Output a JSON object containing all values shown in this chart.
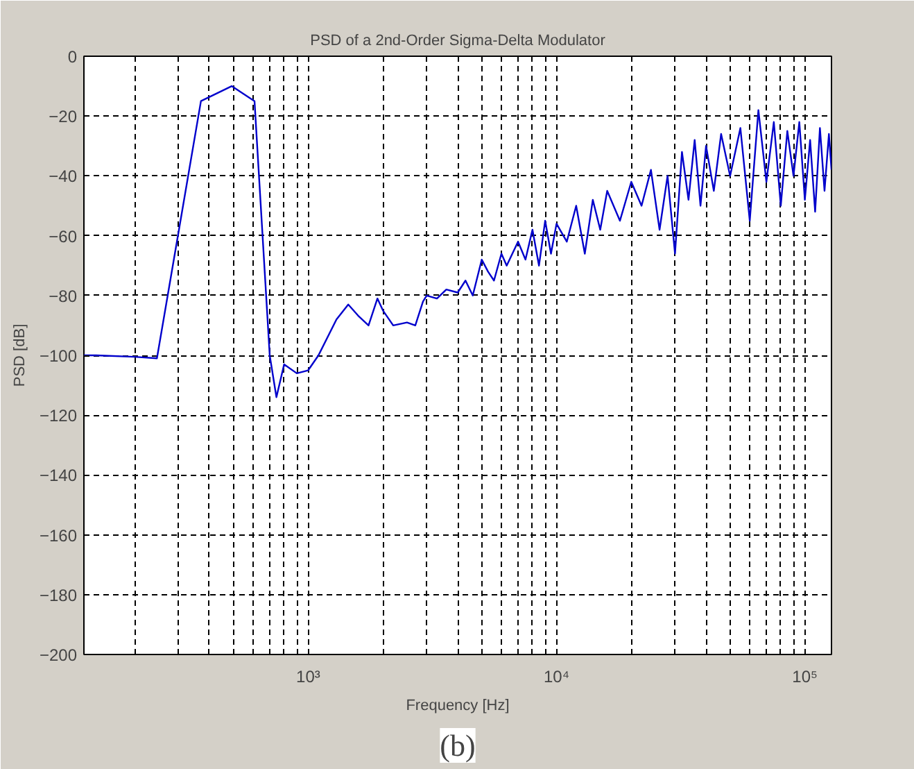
{
  "chart_data": {
    "type": "line",
    "title": "PSD of a 2nd-Order Sigma-Delta Modulator",
    "xlabel": "Frequency [Hz]",
    "ylabel": "PSD [dB]",
    "annotations": [
      "(b)"
    ],
    "log": "x",
    "grid": true,
    "line_style": "solid",
    "marker": "none",
    "xlim": [
      125,
      128000
    ],
    "ylim": [
      -200,
      0
    ],
    "xticks": [
      {
        "value": 1000,
        "label": "10³"
      },
      {
        "value": 10000,
        "label": "10⁴"
      },
      {
        "value": 100000,
        "label": "10⁵"
      }
    ],
    "yticks": [
      -200,
      -180,
      -160,
      -140,
      -120,
      -100,
      -80,
      -60,
      -40,
      -20,
      0
    ],
    "x": [
      125,
      140,
      200,
      246,
      370,
      492,
      608,
      700,
      745,
      800,
      900,
      1000,
      1100,
      1300,
      1450,
      1600,
      1750,
      1900,
      2000,
      2200,
      2500,
      2700,
      2900,
      3000,
      3300,
      3600,
      4000,
      4300,
      4600,
      5000,
      5300,
      5600,
      6000,
      6300,
      7000,
      7500,
      8000,
      8500,
      9000,
      9500,
      10000,
      11000,
      12000,
      13000,
      14000,
      15000,
      16000,
      18000,
      20000,
      22000,
      24000,
      26000,
      28000,
      30000,
      32000,
      34000,
      36000,
      38000,
      40000,
      43000,
      46000,
      50000,
      55000,
      60000,
      65000,
      70000,
      75000,
      80000,
      85000,
      90000,
      95000,
      100000,
      105000,
      110000,
      115000,
      120000,
      125000,
      128000
    ],
    "series": [
      {
        "color": "#0000cc",
        "values": [
          -100,
          -100,
          -100.5,
          -101,
          -15,
          -10,
          -15,
          -100,
          -114,
          -103,
          -106,
          -105,
          -100,
          -88,
          -83,
          -87,
          -90,
          -81,
          -85,
          -90,
          -89,
          -90,
          -82,
          -80,
          -81,
          -78,
          -79,
          -75,
          -80,
          -68,
          -72,
          -75,
          -66,
          -70,
          -62,
          -68,
          -58,
          -70,
          -55,
          -66,
          -56,
          -62,
          -50,
          -66,
          -48,
          -58,
          -45,
          -55,
          -42,
          -50,
          -38,
          -58,
          -40,
          -66,
          -32,
          -48,
          -28,
          -50,
          -30,
          -45,
          -26,
          -40,
          -24,
          -55,
          -18,
          -42,
          -22,
          -50,
          -25,
          -40,
          -22,
          -48,
          -28,
          -52,
          -24,
          -45,
          -26,
          -38
        ]
      }
    ]
  }
}
